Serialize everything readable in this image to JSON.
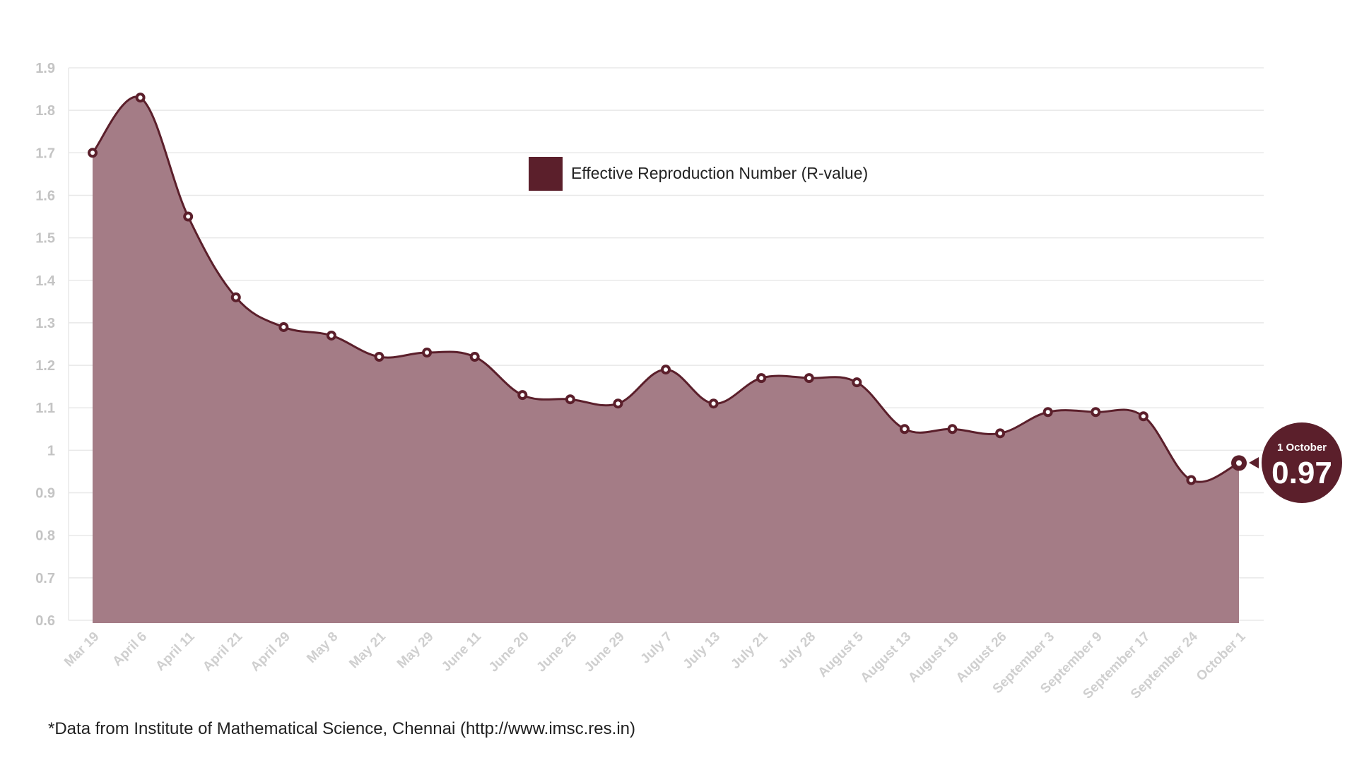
{
  "chart_data": {
    "type": "area",
    "categories": [
      "Mar 19",
      "April 6",
      "April 11",
      "April 21",
      "April 29",
      "May 8",
      "May 21",
      "May 29",
      "June 11",
      "June 20",
      "June 25",
      "June 29",
      "July 7",
      "July 13",
      "July 21",
      "July 28",
      "August 5",
      "August 13",
      "August 19",
      "August 26",
      "September 3",
      "September 9",
      "September 17",
      "September 24",
      "October 1"
    ],
    "series": [
      {
        "name": "Effective Reproduction Number (R-value)",
        "values": [
          1.7,
          1.83,
          1.55,
          1.36,
          1.29,
          1.27,
          1.22,
          1.23,
          1.22,
          1.13,
          1.12,
          1.11,
          1.19,
          1.11,
          1.17,
          1.17,
          1.16,
          1.05,
          1.05,
          1.04,
          1.09,
          1.09,
          1.08,
          0.93,
          0.97
        ]
      }
    ],
    "yticks": [
      "1.9",
      "1.8",
      "1.7",
      "1.6",
      "1.5",
      "1.4",
      "1.3",
      "1.2",
      "1.1",
      "1",
      "0.9",
      "0.8",
      "0.7",
      "0.6"
    ],
    "ylim": [
      0.6,
      1.9
    ],
    "grid": true,
    "legend": "top-center",
    "colors": {
      "line": "#5b1f2b",
      "fill": "#a47c86",
      "marker": "#5b1f2b",
      "grid": "#e8e8e8"
    },
    "callout": {
      "date": "1 October",
      "value": "0.97"
    }
  },
  "footnote": "*Data from Institute of Mathematical Science, Chennai (http://www.imsc.res.in)"
}
